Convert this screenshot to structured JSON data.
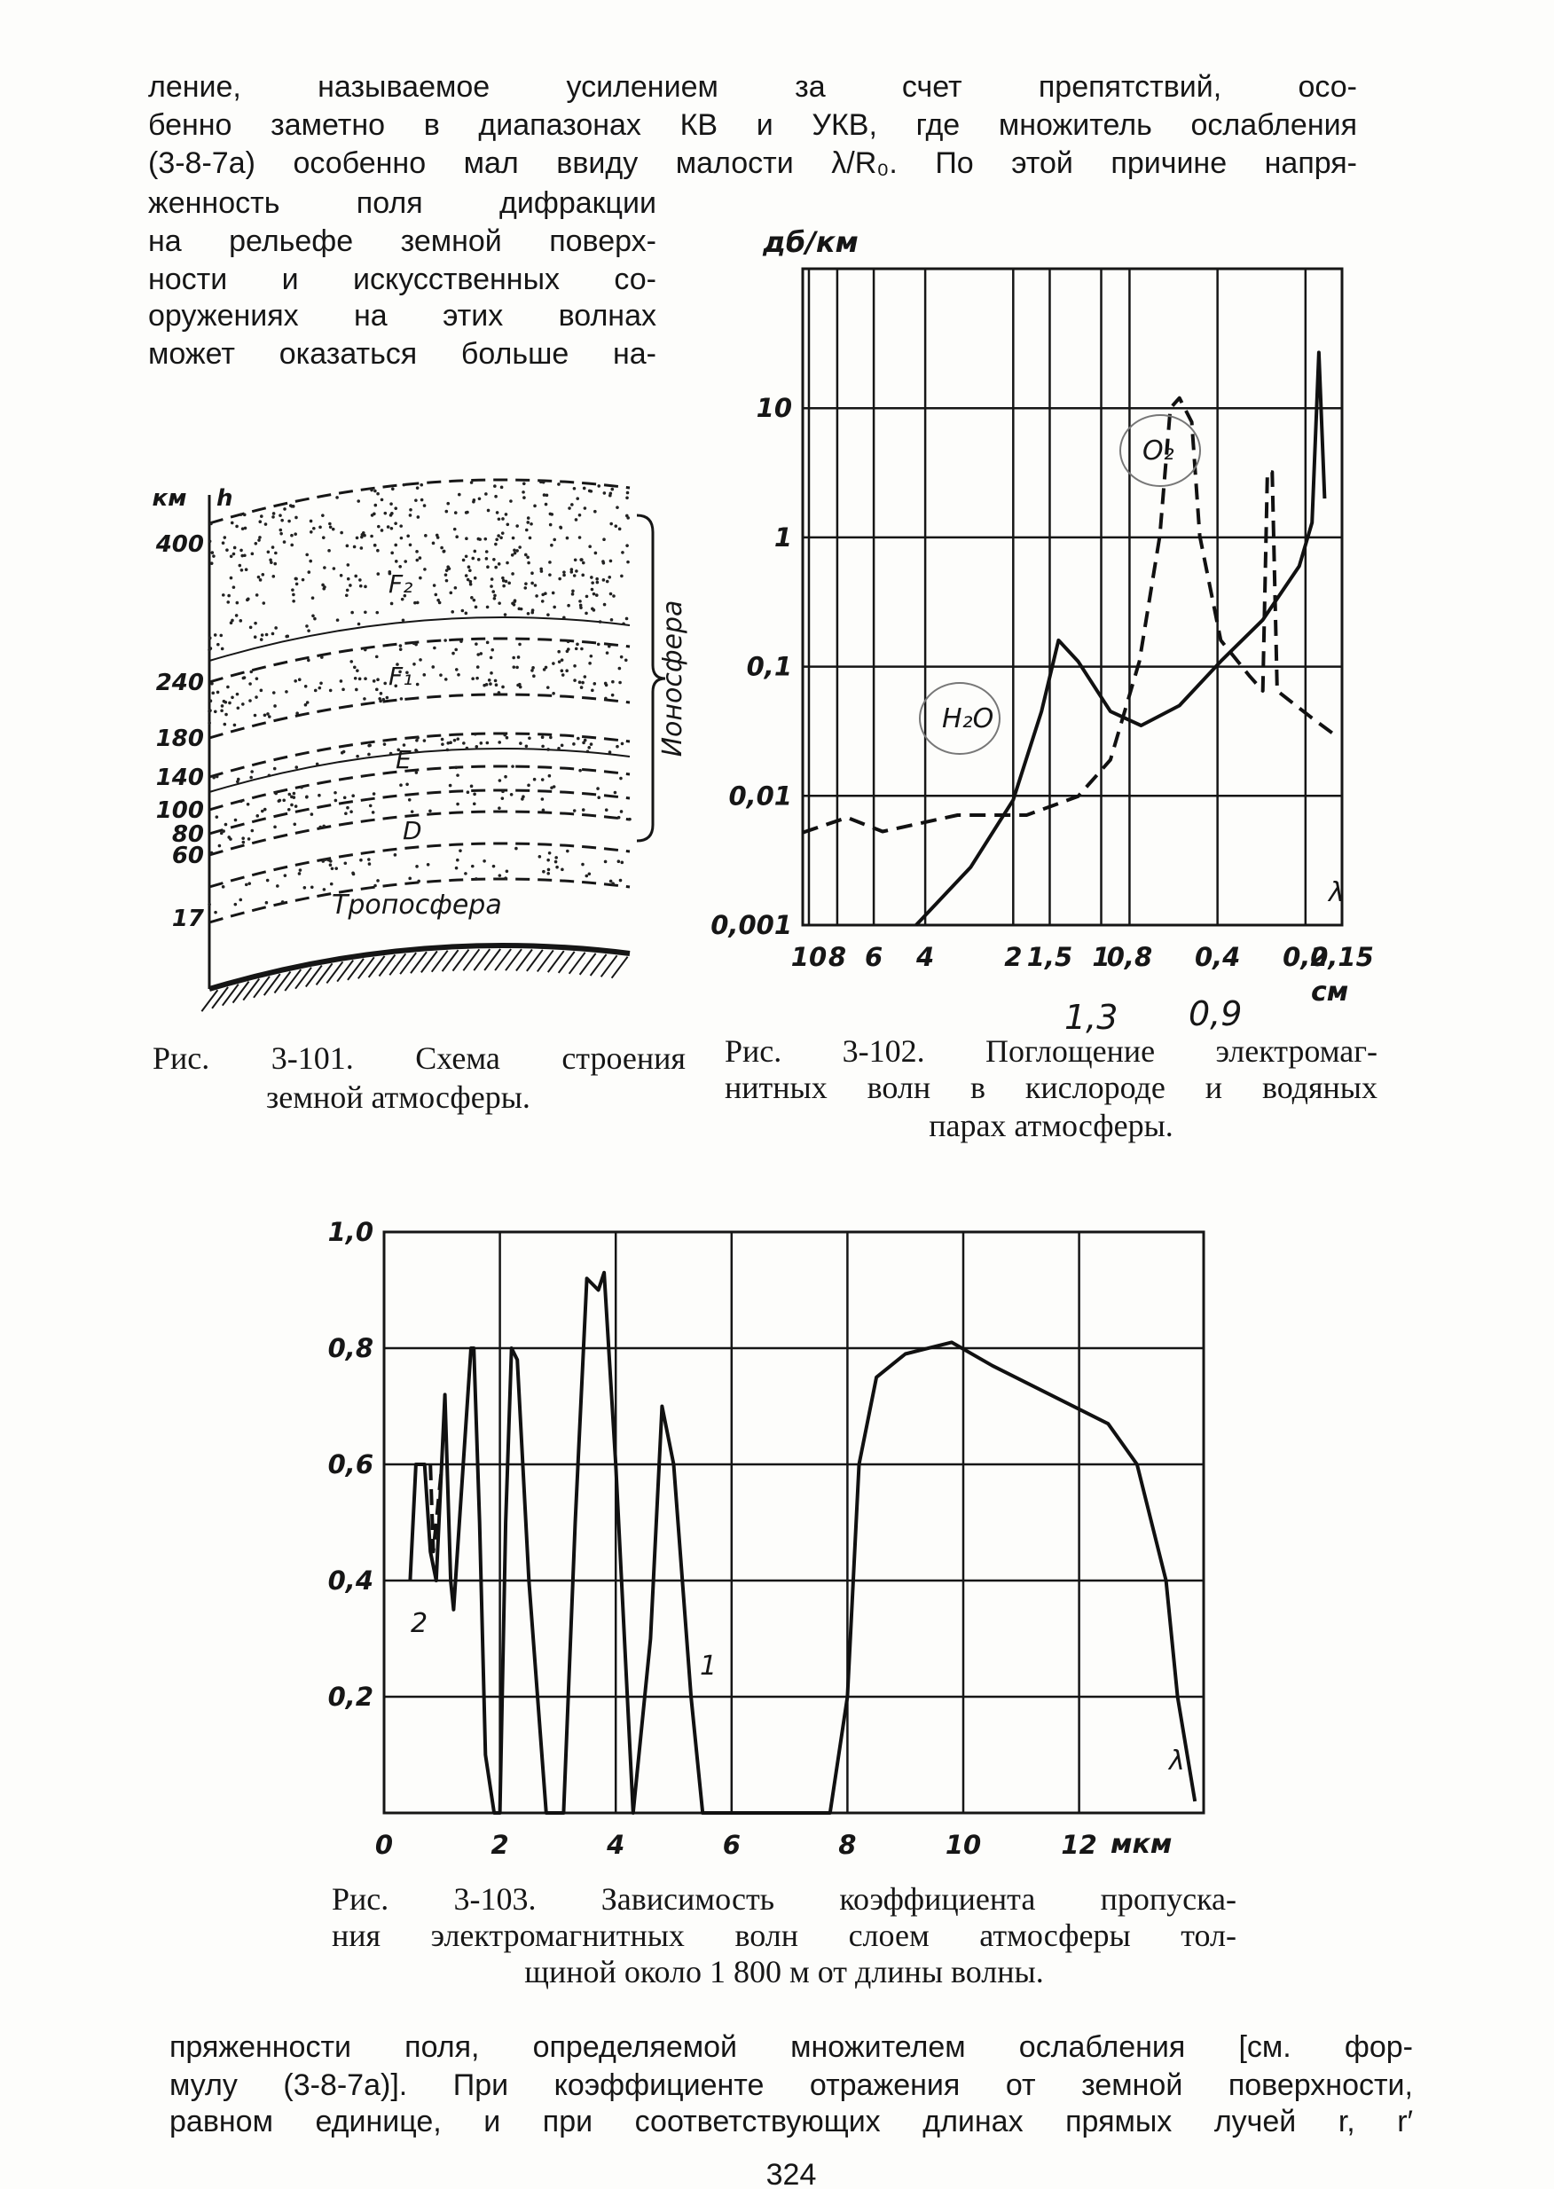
{
  "text": {
    "top": [
      "ление, называемое усилением за счет препятствий, осо-",
      "бенно заметно в диапазонах КВ и УКВ, где множитель ослабления",
      "(3-8-7а) особенно мал ввиду малости λ/R₀. По этой причине напря-"
    ],
    "side": [
      "женность поля дифракции",
      "на рельефе земной поверх-",
      "ности и искусственных со-",
      "оружениях на этих волнах",
      "может оказаться больше на-"
    ],
    "bottom": [
      "пряженности поля, определяемой множителем ослабления [см. фор-",
      "мулу (3-8-7а)]. При коэффициенте отражения от земной поверхности,",
      "равном единице, и при соответствующих длинах прямых лучей r, r′"
    ],
    "page_number": "324"
  },
  "figure_3_101": {
    "unit": "км",
    "axis": "h",
    "heights": [
      400,
      240,
      180,
      140,
      100,
      80,
      60,
      17
    ],
    "layers": [
      "F₂",
      "F₁",
      "E",
      "D",
      "Тропосфера"
    ],
    "region": "Ионосфера",
    "caption": [
      "Рис. 3-101. Схема строения",
      "земной атмосферы."
    ]
  },
  "handwritten_notes": [
    "1,3",
    "0,9"
  ],
  "chart_data": [
    {
      "type": "line",
      "caption": [
        "Рис. 3-102. Поглощение электромаг-",
        "нитных волн в кислороде и водяных",
        "парах атмосферы."
      ],
      "y_label": "дб/км",
      "x_label": "см",
      "axis_symbol": "λ",
      "xscale": "log",
      "yscale": "log",
      "grid": true,
      "xlim": [
        10.5,
        0.15
      ],
      "ylim": [
        0.001,
        120
      ],
      "xticks": [
        10,
        8,
        6,
        4,
        2,
        {
          "value": 1.5,
          "label": "1,5"
        },
        1,
        {
          "value": 0.8,
          "label": "0,8"
        },
        {
          "value": 0.4,
          "label": "0,4"
        },
        {
          "value": 0.2,
          "label": "0,2"
        },
        {
          "value": 0.15,
          "label": "0,15"
        }
      ],
      "yticks": [
        {
          "value": 0.001,
          "label": "0,001"
        },
        {
          "value": 0.01,
          "label": "0,01"
        },
        {
          "value": 0.1,
          "label": "0,1"
        },
        1,
        10
      ],
      "series": [
        {
          "name": "H₂O",
          "color": "#111111",
          "style": "solid",
          "x": [
            4.3,
            2.8,
            2.0,
            1.6,
            1.4,
            1.2,
            0.93,
            0.73,
            0.54,
            0.39,
            0.28,
            0.21,
            0.19,
            0.18,
            0.172
          ],
          "values": [
            0.001,
            0.0028,
            0.0093,
            0.045,
            0.16,
            0.11,
            0.045,
            0.035,
            0.05,
            0.11,
            0.23,
            0.6,
            1.3,
            27,
            2
          ]
        },
        {
          "name": "O₂",
          "color": "#111111",
          "style": "dashed",
          "x": [
            10.5,
            7.4,
            5.6,
            3.1,
            1.8,
            1.2,
            0.93,
            0.74,
            0.63,
            0.58,
            0.54,
            0.49,
            0.46,
            0.39,
            0.31,
            0.28,
            0.27,
            0.26,
            0.25,
            0.19,
            0.16
          ],
          "values": [
            0.0052,
            0.0068,
            0.0053,
            0.0071,
            0.0071,
            0.0099,
            0.019,
            0.11,
            1.03,
            10,
            12,
            7.8,
            1.03,
            0.16,
            0.084,
            0.065,
            3.2,
            3.2,
            0.065,
            0.04,
            0.03
          ]
        }
      ]
    },
    {
      "type": "line",
      "caption": [
        "Рис. 3-103. Зависимость коэффициента пропуска-",
        "ния электромагнитных волн слоем атмосферы тол-",
        "щиной около 1 800 м от длины волны."
      ],
      "x_label": "мкм",
      "axis_symbol": "λ",
      "grid": true,
      "xlim": [
        0,
        14.15
      ],
      "ylim": [
        0,
        1.0
      ],
      "xticks": [
        0,
        2,
        4,
        6,
        8,
        10,
        12
      ],
      "yticks": [
        {
          "value": 0.2,
          "label": "0,2"
        },
        {
          "value": 0.4,
          "label": "0,4"
        },
        {
          "value": 0.6,
          "label": "0,6"
        },
        {
          "value": 0.8,
          "label": "0,8"
        },
        {
          "value": 1.0,
          "label": "1,0"
        }
      ],
      "series": [
        {
          "name": "1",
          "color": "#111111",
          "style": "solid",
          "x": [
            0.45,
            0.55,
            0.7,
            0.8,
            0.9,
            1.05,
            1.15,
            1.2,
            1.3,
            1.5,
            1.55,
            1.65,
            1.75,
            1.9,
            2.0,
            2.1,
            2.2,
            2.3,
            2.5,
            2.8,
            3.1,
            3.3,
            3.5,
            3.7,
            3.8,
            4.0,
            4.3,
            4.6,
            4.8,
            5.0,
            5.3,
            5.5,
            7.7,
            8.0,
            8.2,
            8.5,
            9.0,
            9.8,
            10.5,
            11.5,
            12.5,
            13.0,
            13.5,
            13.7,
            14.0
          ],
          "values": [
            0.4,
            0.6,
            0.6,
            0.45,
            0.4,
            0.72,
            0.4,
            0.35,
            0.5,
            0.8,
            0.8,
            0.5,
            0.1,
            0,
            0,
            0.5,
            0.8,
            0.78,
            0.4,
            0,
            0,
            0.5,
            0.92,
            0.9,
            0.93,
            0.6,
            0,
            0.3,
            0.7,
            0.6,
            0.2,
            0,
            0,
            0.2,
            0.6,
            0.75,
            0.79,
            0.81,
            0.77,
            0.72,
            0.67,
            0.6,
            0.4,
            0.2,
            0.02
          ]
        },
        {
          "name": "2",
          "color": "#111111",
          "style": "dashed",
          "x": [
            0.8,
            0.85,
            0.9,
            1.0
          ],
          "values": [
            0.6,
            0.45,
            0.5,
            0.6
          ]
        }
      ]
    }
  ]
}
